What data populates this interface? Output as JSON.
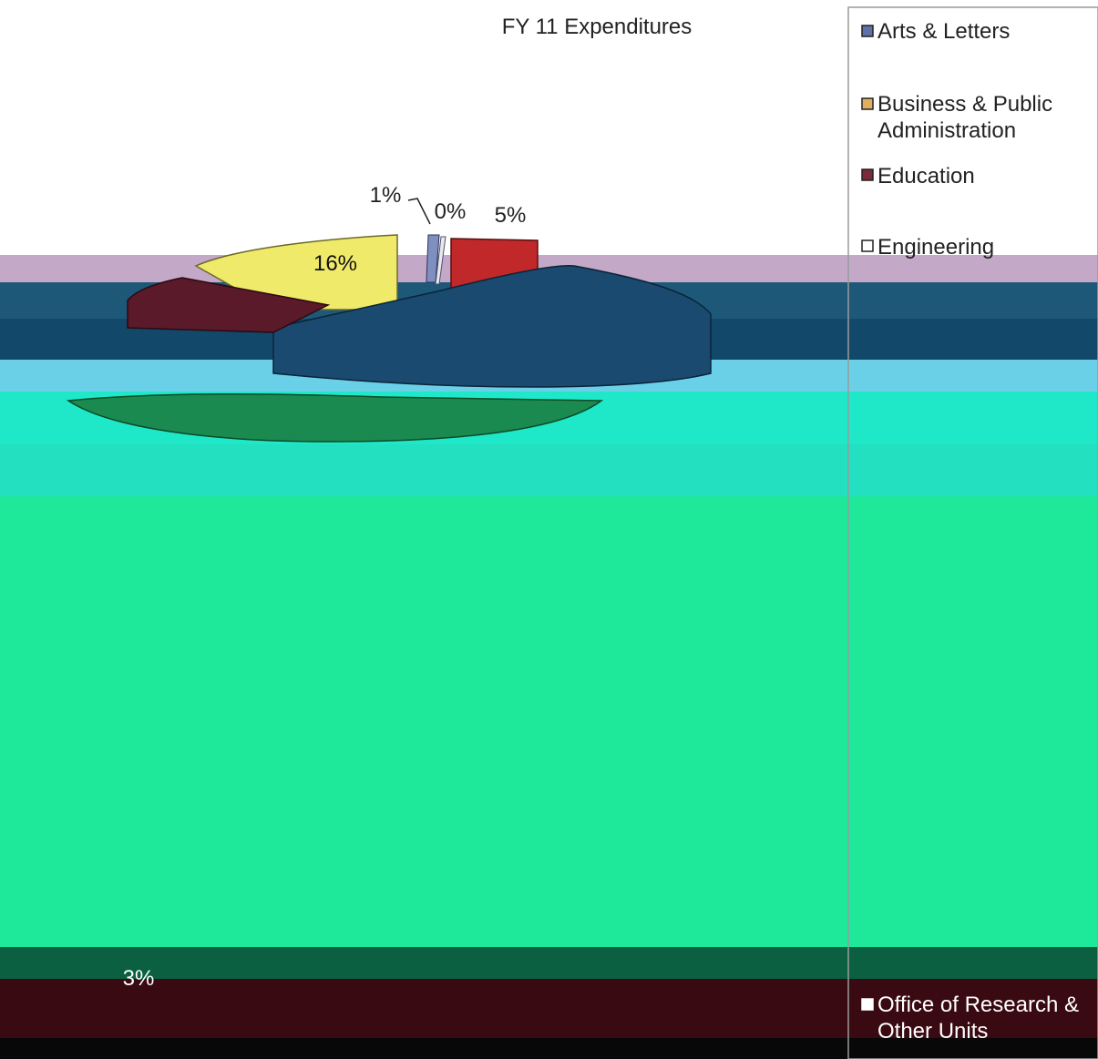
{
  "chart_data": {
    "type": "pie",
    "title": "FY 11 Expenditures",
    "three_d": true,
    "exploded": true,
    "legend_position": "right",
    "categories": [
      "Arts & Letters",
      "Business & Public Administration",
      "Education",
      "Engineering",
      "Office of Research & Other Units"
    ],
    "slices": [
      {
        "label": "1%",
        "color": "#7f8fbf"
      },
      {
        "label": "0%",
        "color": "#e8e8f0"
      },
      {
        "label": "5%",
        "color": "#c0282a"
      },
      {
        "label": "16%",
        "color": "#f0ea6a"
      },
      {
        "label": "3%",
        "color": "#1e8c5a"
      }
    ],
    "legend_colors": [
      "#6070a8",
      "#e0b060",
      "#7a2a3a",
      "#ffffff",
      "#ffffff"
    ]
  }
}
